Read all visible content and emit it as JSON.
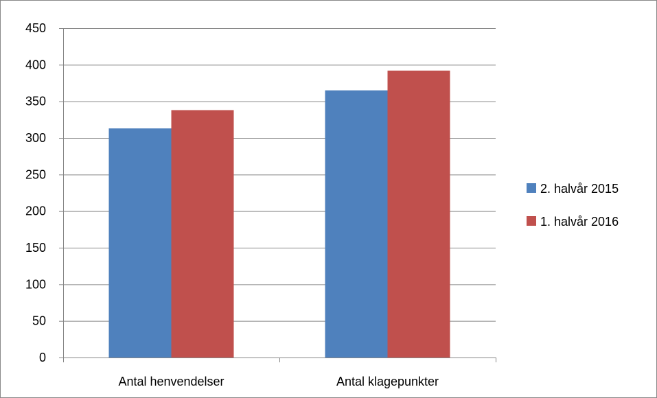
{
  "chart_data": {
    "type": "bar",
    "categories": [
      "Antal henvendelser",
      "Antal klagepunkter"
    ],
    "series": [
      {
        "name": "2. halvår 2015",
        "values": [
          313,
          365
        ],
        "color": "#4F81BD"
      },
      {
        "name": "1. halvår 2016",
        "values": [
          338,
          392
        ],
        "color": "#C0504D"
      }
    ],
    "title": "",
    "xlabel": "",
    "ylabel": "",
    "ylim": [
      0,
      450
    ],
    "yticks": [
      0,
      50,
      100,
      150,
      200,
      250,
      300,
      350,
      400,
      450
    ],
    "grid": true,
    "legend_position": "right"
  }
}
